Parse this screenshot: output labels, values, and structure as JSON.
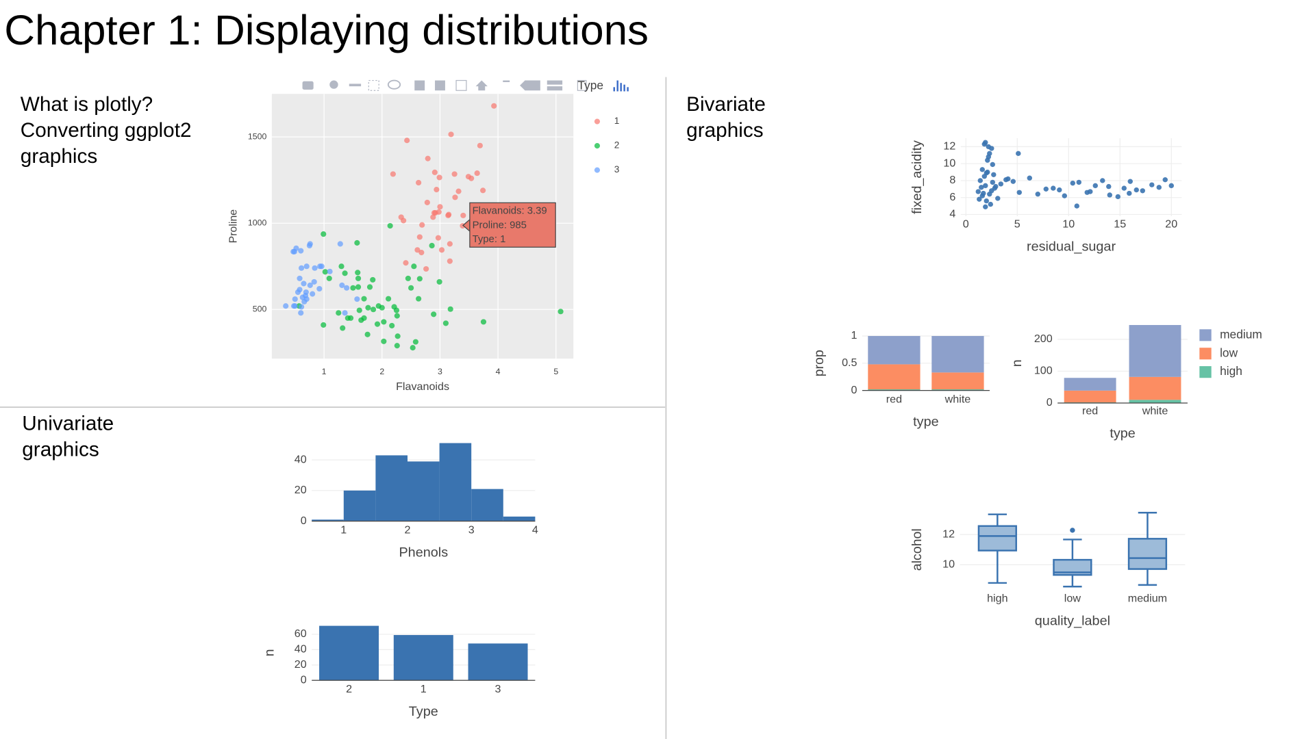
{
  "title": "Chapter 1: Displaying distributions",
  "sections": [
    [
      "What is plotly?",
      "Converting ggplot2",
      "graphics"
    ],
    [
      "Univariate",
      "graphics"
    ],
    [
      "Bivariate",
      "graphics"
    ]
  ],
  "chart_data": [
    {
      "type": "scatter",
      "x_label": "Flavanoids",
      "y_label": "Proline",
      "legend_title": "Type",
      "xlim": [
        0.1,
        5.3
      ],
      "ylim": [
        215,
        1750
      ],
      "xticks": [
        1,
        2,
        3,
        4,
        5
      ],
      "yticks": [
        500,
        1000,
        1500
      ],
      "grid": true,
      "annotations": [
        "Flavanoids: 3.39",
        "Proline: 985",
        "Type: 1"
      ],
      "series": [
        {
          "name": "1",
          "color": "#F8766D",
          "x": [
            2.98,
            3.15,
            3.32,
            2.43,
            2.76,
            3.69,
            3.64,
            2.91,
            3.14,
            3.4,
            3.93,
            3.03,
            3.17,
            2.41,
            2.88,
            2.37,
            2.61,
            2.68,
            2.94,
            2.19,
            2.97,
            2.33,
            3.25,
            3.19,
            2.69,
            2.63,
            3.0,
            2.65,
            3.17,
            3.39,
            2.92,
            3.54,
            3.26,
            2.99,
            3.74,
            2.79,
            2.9,
            2.78,
            3.56,
            3.49
          ],
          "y": [
            1065,
            1050,
            1185,
            1480,
            735,
            1450,
            1290,
            1295,
            1045,
            1045,
            1680,
            845,
            780,
            770,
            1035,
            1015,
            845,
            830,
            1195,
            1285,
            915,
            1035,
            1285,
            1515,
            990,
            1235,
            1095,
            920,
            880,
            985,
            1060,
            1260,
            1150,
            1265,
            1190,
            1375,
            1060,
            1120,
            970,
            1270
          ]
        },
        {
          "name": "2",
          "color": "#00BA38",
          "x": [
            0.57,
            1.09,
            1.41,
            1.79,
            3.1,
            1.75,
            2.65,
            3.18,
            2.0,
            1.3,
            1.02,
            2.86,
            0.99,
            2.89,
            2.14,
            1.57,
            2.03,
            1.32,
            1.85,
            2.55,
            2.26,
            2.53,
            1.58,
            1.59,
            2.21,
            1.94,
            1.69,
            1.61,
            1.69,
            1.59,
            1.5,
            1.25,
            1.46,
            2.25,
            2.26,
            2.27,
            0.99,
            2.5,
            3.75,
            2.99,
            2.17,
            1.36,
            2.11,
            1.64,
            1.92,
            1.84,
            2.03,
            1.76,
            5.08,
            2.58,
            2.45,
            2.63
          ],
          "y": [
            520,
            680,
            450,
            630,
            420,
            355,
            678,
            502,
            510,
            750,
            718,
            870,
            410,
            472,
            985,
            886,
            428,
            392,
            500,
            750,
            463,
            278,
            714,
            630,
            515,
            520,
            450,
            495,
            562,
            680,
            625,
            480,
            450,
            495,
            290,
            345,
            937,
            625,
            428,
            660,
            406,
            710,
            562,
            438,
            415,
            672,
            315,
            510,
            488,
            312,
            680,
            562
          ]
        },
        {
          "name": "3",
          "color": "#619CFF",
          "x": [
            0.61,
            0.7,
            0.47,
            0.6,
            0.5,
            0.52,
            0.8,
            0.55,
            0.34,
            0.65,
            0.76,
            1.39,
            1.57,
            1.36,
            1.28,
            0.83,
            0.58,
            0.63,
            0.58,
            1.31,
            1.1,
            0.92,
            0.6,
            0.5,
            0.84,
            0.96,
            0.49,
            0.7,
            0.61,
            0.69,
            0.68,
            0.76,
            0.75,
            0.48,
            0.66,
            0.93
          ],
          "y": [
            740,
            750,
            835,
            840,
            560,
            855,
            590,
            600,
            520,
            650,
            640,
            625,
            560,
            480,
            880,
            660,
            680,
            570,
            615,
            640,
            720,
            620,
            480,
            520,
            740,
            750,
            835,
            560,
            515,
            600,
            580,
            880,
            870,
            520,
            545,
            750
          ]
        }
      ]
    },
    {
      "type": "histogram",
      "x_label": "Phenols",
      "color": "#3a73b0",
      "bins": [
        0.5,
        1,
        1.5,
        2,
        2.5,
        3,
        3.5,
        4
      ],
      "values": [
        1,
        20,
        43,
        39,
        51,
        21,
        3
      ],
      "xlim": [
        0.5,
        4
      ],
      "ylim": [
        0,
        52
      ],
      "xticks": [
        1,
        2,
        3,
        4
      ],
      "yticks": [
        0,
        20,
        40
      ],
      "grid": true
    },
    {
      "type": "bar",
      "x_label": "Type",
      "y_label": "n",
      "color": "#3a73b0",
      "categories": [
        "2",
        "1",
        "3"
      ],
      "values": [
        71,
        59,
        48
      ],
      "ylim": [
        0,
        72
      ],
      "yticks": [
        0,
        20,
        40,
        60
      ],
      "grid": true
    },
    {
      "type": "scatter",
      "x_label": "residual_sugar",
      "y_label": "fixed_acidity",
      "xlim": [
        -0.5,
        21
      ],
      "ylim": [
        3.8,
        13
      ],
      "xticks": [
        0,
        5,
        10,
        15,
        20
      ],
      "yticks": [
        4,
        6,
        8,
        10,
        12
      ],
      "grid": true,
      "series": [
        {
          "color": "#3a73b0",
          "x": [
            1.9,
            2.6,
            2.3,
            1.9,
            1.8,
            1.6,
            2.1,
            1.2,
            2.0,
            5.1,
            1.8,
            1.6,
            2.8,
            2.5,
            3.9,
            2.4,
            2.0,
            1.5,
            1.7,
            2.2,
            2.6,
            1.9,
            2.3,
            2.5,
            2.9,
            1.4,
            3.4,
            2.1,
            8.5,
            7.0,
            6.2,
            9.1,
            10.4,
            11.8,
            12.6,
            13.3,
            14.0,
            15.4,
            16.0,
            17.2,
            18.1,
            19.4,
            20.0,
            5.2,
            4.6,
            7.8,
            9.6,
            11.0,
            12.1,
            13.9,
            14.8,
            16.6,
            18.8,
            3.1,
            4.1,
            10.8,
            15.9,
            1.3,
            2.7,
            2.2
          ],
          "y": [
            7.4,
            7.8,
            11.2,
            12.5,
            12.3,
            6.2,
            10.4,
            6.7,
            5.6,
            11.2,
            8.5,
            9.3,
            7.1,
            6.8,
            8.1,
            5.2,
            8.9,
            7.2,
            6.5,
            10.8,
            9.9,
            4.9,
            6.4,
            11.8,
            7.3,
            8.0,
            7.6,
            9.0,
            7.1,
            6.4,
            8.3,
            6.9,
            7.7,
            6.6,
            7.4,
            8.0,
            6.3,
            7.1,
            7.9,
            6.8,
            7.5,
            8.1,
            7.4,
            6.6,
            7.9,
            7.0,
            6.2,
            7.8,
            6.7,
            7.3,
            6.1,
            6.9,
            7.2,
            5.9,
            8.2,
            5.0,
            6.5,
            5.8,
            8.7,
            12.0
          ]
        }
      ]
    },
    {
      "type": "bar",
      "stacked": true,
      "x_label": "type",
      "y_label": "prop",
      "categories": [
        "red",
        "white"
      ],
      "ylim": [
        0,
        1
      ],
      "yticks": [
        0,
        0.5,
        1
      ],
      "grid": true,
      "series": [
        {
          "color": "#66c2a5",
          "values": [
            0.02,
            0.02
          ]
        },
        {
          "color": "#fc8d62",
          "values": [
            0.46,
            0.31
          ]
        },
        {
          "color": "#8da0cb",
          "values": [
            0.52,
            0.67
          ]
        }
      ]
    },
    {
      "type": "bar",
      "stacked": true,
      "x_label": "type",
      "y_label": "n",
      "categories": [
        "red",
        "white"
      ],
      "ylim": [
        0,
        250
      ],
      "yticks": [
        0,
        100,
        200
      ],
      "grid": true,
      "series": [
        {
          "name": "high",
          "color": "#66c2a5",
          "values": [
            2,
            10
          ]
        },
        {
          "name": "low",
          "color": "#fc8d62",
          "values": [
            37,
            72
          ]
        },
        {
          "name": "medium",
          "color": "#8da0cb",
          "values": [
            40,
            163
          ]
        }
      ]
    },
    {
      "type": "box",
      "x_label": "quality_label",
      "y_label": "alcohol",
      "color": "#3a73b0",
      "fill": "#9dbbd9",
      "categories": [
        "high",
        "low",
        "medium"
      ],
      "ylim": [
        8.4,
        13.6
      ],
      "yticks": [
        10,
        12
      ],
      "grid": true,
      "boxes": [
        {
          "min": 8.8,
          "q1": 10.94,
          "median": 11.9,
          "q3": 12.56,
          "max": 13.33,
          "outliers": []
        },
        {
          "min": 8.56,
          "q1": 9.33,
          "median": 9.5,
          "q3": 10.33,
          "max": 11.67,
          "outliers": [
            12.28
          ]
        },
        {
          "min": 8.67,
          "q1": 9.72,
          "median": 10.44,
          "q3": 11.72,
          "max": 13.44,
          "outliers": []
        }
      ]
    }
  ]
}
